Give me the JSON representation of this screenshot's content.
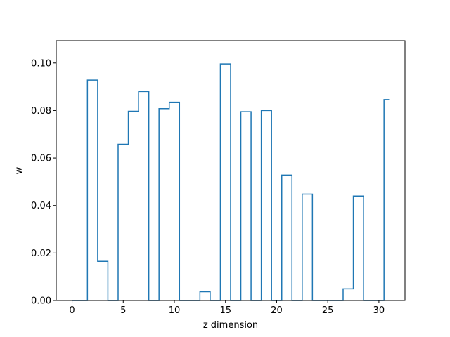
{
  "chart_data": {
    "type": "line",
    "style": "step-mid",
    "title": "",
    "xlabel": "z dimension",
    "ylabel": "w",
    "xlim": [
      -1.55,
      32.55
    ],
    "ylim": [
      0.0,
      0.1094
    ],
    "xticks": [
      0,
      5,
      10,
      15,
      20,
      25,
      30
    ],
    "yticks": [
      0.0,
      0.02,
      0.04,
      0.06,
      0.08,
      0.1
    ],
    "ytick_labels": [
      "0.00",
      "0.02",
      "0.04",
      "0.06",
      "0.08",
      "0.10"
    ],
    "grid": false,
    "series": [
      {
        "color": "#1f77b4",
        "x": [
          0,
          1,
          2,
          3,
          4,
          5,
          6,
          7,
          8,
          9,
          10,
          11,
          12,
          13,
          14,
          15,
          16,
          17,
          18,
          19,
          20,
          21,
          22,
          23,
          24,
          25,
          26,
          27,
          28,
          29,
          30,
          31
        ],
        "y": [
          0.0,
          0.0,
          0.0928,
          0.0165,
          0.0,
          0.0658,
          0.0797,
          0.088,
          0.0,
          0.0808,
          0.0835,
          0.0,
          0.0,
          0.0037,
          0.0,
          0.0996,
          0.0,
          0.0795,
          0.0,
          0.08,
          0.0,
          0.0528,
          0.0,
          0.0448,
          0.0,
          0.0,
          0.0,
          0.0049,
          0.044,
          0.0,
          0.0,
          0.0846
        ]
      }
    ]
  }
}
